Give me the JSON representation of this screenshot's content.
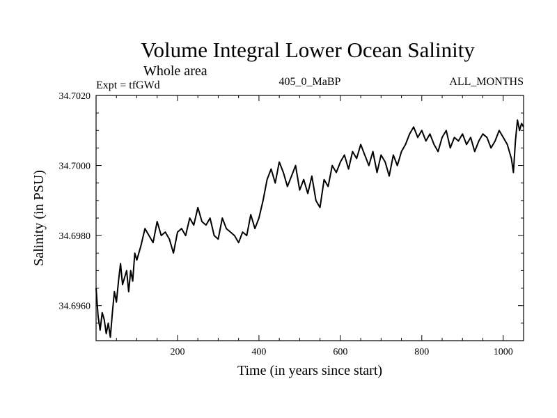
{
  "chart_data": {
    "type": "line",
    "title": "Volume Integral Lower Ocean Salinity",
    "subtitle": "Whole area",
    "left_label": "Expt = tfGWd",
    "center_label": "405_0_MaBP",
    "right_label": "ALL_MONTHS",
    "xlabel": "Time (in years since start)",
    "ylabel": "Salinity (in PSU)",
    "xlim": [
      0,
      1050
    ],
    "ylim": [
      34.695,
      34.702
    ],
    "x_ticks": [
      200,
      400,
      600,
      800,
      1000
    ],
    "x_tick_labels": [
      "200",
      "400",
      "600",
      "800",
      "1000"
    ],
    "y_ticks": [
      34.696,
      34.698,
      34.7,
      34.702
    ],
    "y_tick_labels": [
      "34.6960",
      "34.6980",
      "34.7000",
      "34.7020"
    ],
    "grid": false,
    "series": [
      {
        "name": "salinity",
        "x": [
          0,
          5,
          10,
          15,
          20,
          25,
          30,
          35,
          40,
          45,
          50,
          55,
          60,
          65,
          70,
          75,
          80,
          85,
          90,
          95,
          100,
          110,
          120,
          130,
          140,
          150,
          160,
          170,
          180,
          190,
          200,
          210,
          220,
          230,
          240,
          250,
          260,
          270,
          280,
          290,
          300,
          310,
          320,
          330,
          340,
          350,
          360,
          370,
          380,
          390,
          400,
          410,
          420,
          430,
          440,
          450,
          460,
          470,
          480,
          490,
          500,
          510,
          520,
          530,
          540,
          550,
          560,
          570,
          580,
          590,
          600,
          610,
          620,
          630,
          640,
          650,
          660,
          670,
          680,
          690,
          700,
          710,
          720,
          730,
          740,
          750,
          760,
          770,
          780,
          790,
          800,
          810,
          820,
          830,
          840,
          850,
          860,
          870,
          880,
          890,
          900,
          910,
          920,
          930,
          940,
          950,
          960,
          970,
          980,
          990,
          1000,
          1010,
          1020,
          1025,
          1030,
          1035,
          1040,
          1045,
          1050
        ],
        "values": [
          34.6965,
          34.6957,
          34.6953,
          34.6958,
          34.6956,
          34.6952,
          34.6955,
          34.6951,
          34.6958,
          34.6964,
          34.6961,
          34.6967,
          34.6972,
          34.6966,
          34.6968,
          34.697,
          34.6964,
          34.697,
          34.6967,
          34.6975,
          34.6973,
          34.6977,
          34.6982,
          34.698,
          34.6978,
          34.6984,
          34.698,
          34.6981,
          34.6979,
          34.6975,
          34.6981,
          34.6982,
          34.698,
          34.6985,
          34.6983,
          34.6988,
          34.6984,
          34.6983,
          34.6985,
          34.698,
          34.6979,
          34.6985,
          34.6982,
          34.6981,
          34.698,
          34.6978,
          34.6981,
          34.698,
          34.6986,
          34.6982,
          34.6985,
          34.699,
          34.6996,
          34.6999,
          34.6995,
          34.7001,
          34.6998,
          34.6994,
          34.6997,
          34.7,
          34.6993,
          34.6996,
          34.6992,
          34.6997,
          34.699,
          34.6988,
          34.6996,
          34.6994,
          34.7,
          34.6998,
          34.7001,
          34.7003,
          34.6999,
          34.7004,
          34.7002,
          34.7006,
          34.7003,
          34.7,
          34.7004,
          34.6998,
          34.7003,
          34.7001,
          34.6997,
          34.7003,
          34.7,
          34.7004,
          34.7006,
          34.7009,
          34.7011,
          34.7008,
          34.701,
          34.7007,
          34.7009,
          34.7006,
          34.7004,
          34.7008,
          34.701,
          34.7005,
          34.7008,
          34.7007,
          34.7009,
          34.7006,
          34.7008,
          34.7004,
          34.7007,
          34.7009,
          34.7008,
          34.7005,
          34.7007,
          34.701,
          34.7008,
          34.7006,
          34.7002,
          34.6998,
          34.7007,
          34.7013,
          34.701,
          34.7012,
          34.7011
        ]
      }
    ]
  }
}
